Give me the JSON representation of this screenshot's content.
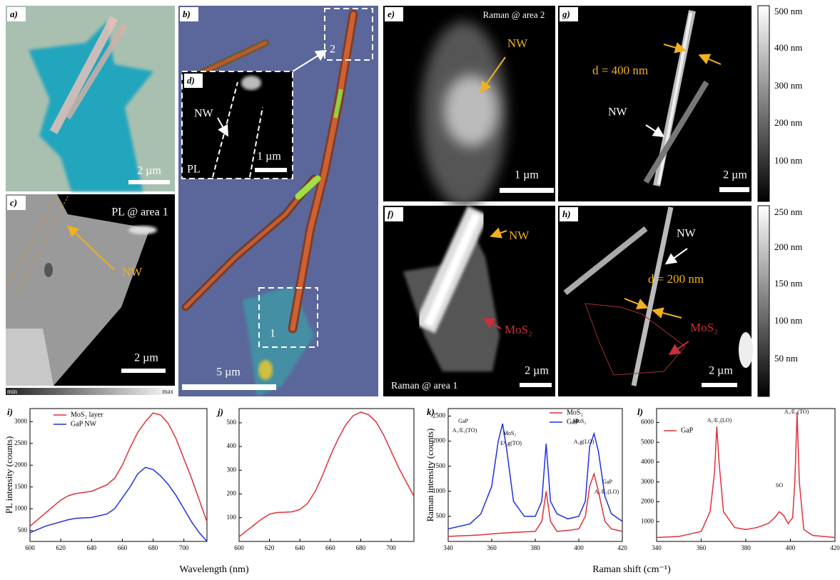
{
  "images": {
    "a": {
      "label": "a)",
      "scale": "2 µm"
    },
    "b": {
      "label": "b)",
      "scale": "5 µm",
      "area1": "1",
      "area2": "2"
    },
    "d": {
      "label": "d)",
      "nw": "NW",
      "scale": "1 µm",
      "pl": "PL"
    },
    "c": {
      "label": "c)",
      "title": "PL @ area 1",
      "nw": "NW",
      "scale": "2 µm",
      "min": "min",
      "max": "max"
    },
    "e": {
      "label": "e)",
      "title": "Raman @ area 2",
      "nw": "NW",
      "scale": "1 µm"
    },
    "f": {
      "label": "f)",
      "title": "Raman @ area 1",
      "nw": "NW",
      "mos2": "MoS₂",
      "scale": "2 µm"
    },
    "g": {
      "label": "g)",
      "d": "d = 400 nm",
      "nw": "NW",
      "scale": "2 µm",
      "colorbar": [
        "500 nm",
        "400 nm",
        "300 nm",
        "200 nm",
        "100 nm"
      ]
    },
    "h": {
      "label": "h)",
      "nw": "NW",
      "d": "d = 200 nm",
      "mos2": "MoS₂",
      "scale": "2 µm",
      "colorbar": [
        "250 nm",
        "200 nm",
        "150 nm",
        "100 nm",
        "50 nm"
      ]
    }
  },
  "chart_data": [
    {
      "type": "line",
      "label": "i)",
      "ylabel": "PL intensity (counts)",
      "xlabel": "Wavelength (nm)",
      "x": [
        600,
        610,
        620,
        625,
        630,
        640,
        650,
        655,
        660,
        665,
        670,
        675,
        680,
        685,
        690,
        695,
        700,
        705,
        710,
        715
      ],
      "series": [
        {
          "name": "MoS₂ layer",
          "color": "#e0303a",
          "values": [
            600,
            900,
            1200,
            1300,
            1350,
            1400,
            1550,
            1700,
            2000,
            2400,
            2750,
            3000,
            3200,
            3150,
            2950,
            2600,
            2150,
            1700,
            1200,
            700
          ]
        },
        {
          "name": "GaP NW",
          "color": "#2030e0",
          "values": [
            450,
            600,
            700,
            750,
            780,
            800,
            880,
            1000,
            1250,
            1500,
            1800,
            1950,
            1900,
            1750,
            1550,
            1300,
            1000,
            700,
            450,
            250
          ]
        }
      ],
      "xlim": [
        600,
        715
      ],
      "xticks": [
        600,
        620,
        640,
        660,
        680,
        700
      ],
      "ylim": [
        250,
        3300
      ],
      "yticks": [
        500,
        1000,
        1500,
        2000,
        2500,
        3000
      ],
      "legend": "upper left"
    },
    {
      "type": "line",
      "label": "j)",
      "x": [
        600,
        605,
        610,
        615,
        620,
        625,
        630,
        635,
        640,
        645,
        650,
        655,
        660,
        665,
        670,
        675,
        680,
        685,
        690,
        695,
        700,
        705,
        710,
        715
      ],
      "series": [
        {
          "color": "#e0303a",
          "values": [
            20,
            45,
            70,
            95,
            115,
            122,
            123,
            125,
            135,
            160,
            210,
            280,
            360,
            430,
            490,
            530,
            545,
            535,
            505,
            450,
            380,
            310,
            250,
            190
          ]
        }
      ],
      "xlim": [
        600,
        715
      ],
      "xticks": [
        600,
        620,
        640,
        660,
        680,
        700
      ],
      "ylim": [
        0,
        560
      ],
      "yticks": [
        100,
        200,
        300,
        400,
        500
      ]
    },
    {
      "type": "line",
      "label": "k)",
      "ylabel": "Raman intensity (counts)",
      "xlabel": "Raman shift (cm⁻¹)",
      "x": [
        340,
        350,
        355,
        360,
        363,
        365,
        367,
        370,
        375,
        380,
        383,
        385,
        387,
        390,
        395,
        400,
        403,
        405,
        407,
        409,
        412,
        415,
        420
      ],
      "series": [
        {
          "name": "MoS₂",
          "color": "#e0303a",
          "values": [
            100,
            120,
            130,
            150,
            160,
            165,
            170,
            180,
            190,
            200,
            400,
            1000,
            400,
            200,
            220,
            250,
            500,
            1100,
            1350,
            1000,
            400,
            250,
            200
          ]
        },
        {
          "name": "GaP",
          "color": "#2030e0",
          "values": [
            250,
            350,
            550,
            1100,
            2000,
            2350,
            1800,
            800,
            500,
            500,
            800,
            1950,
            800,
            550,
            450,
            500,
            800,
            1900,
            2150,
            1800,
            900,
            550,
            400
          ]
        }
      ],
      "annotations": [
        "GaP",
        "A₁/E₁(TO)",
        "MoS₂",
        "E¹₂g(TO)",
        "MoS₂",
        "A₁g(LO)",
        "GaP",
        "A₁/E₁(LO)"
      ],
      "xlim": [
        340,
        420
      ],
      "xticks": [
        340,
        360,
        380,
        400,
        420
      ],
      "ylim": [
        0,
        2650
      ],
      "yticks": [
        500,
        1000,
        1500,
        2000,
        2500
      ],
      "legend": "upper center"
    },
    {
      "type": "line",
      "label": "l)",
      "x": [
        340,
        350,
        360,
        364,
        366,
        367,
        368,
        370,
        375,
        380,
        385,
        390,
        393,
        395,
        397,
        399,
        401,
        402,
        403,
        404,
        406,
        410,
        420
      ],
      "series": [
        {
          "name": "GaP",
          "color": "#e0303a",
          "values": [
            200,
            250,
            500,
            1500,
            3500,
            5800,
            4000,
            1500,
            700,
            600,
            700,
            900,
            1200,
            1500,
            1300,
            900,
            1200,
            3000,
            6500,
            3000,
            600,
            300,
            200
          ]
        }
      ],
      "annotations": [
        "A₁/E₁(LO)",
        "A₁/E₁(TO)",
        "SO"
      ],
      "xlim": [
        340,
        420
      ],
      "xticks": [
        340,
        360,
        380,
        400,
        420
      ],
      "ylim": [
        0,
        6700
      ],
      "yticks": [
        1000,
        2000,
        3000,
        4000,
        5000,
        6000
      ],
      "legend": "upper left"
    }
  ]
}
